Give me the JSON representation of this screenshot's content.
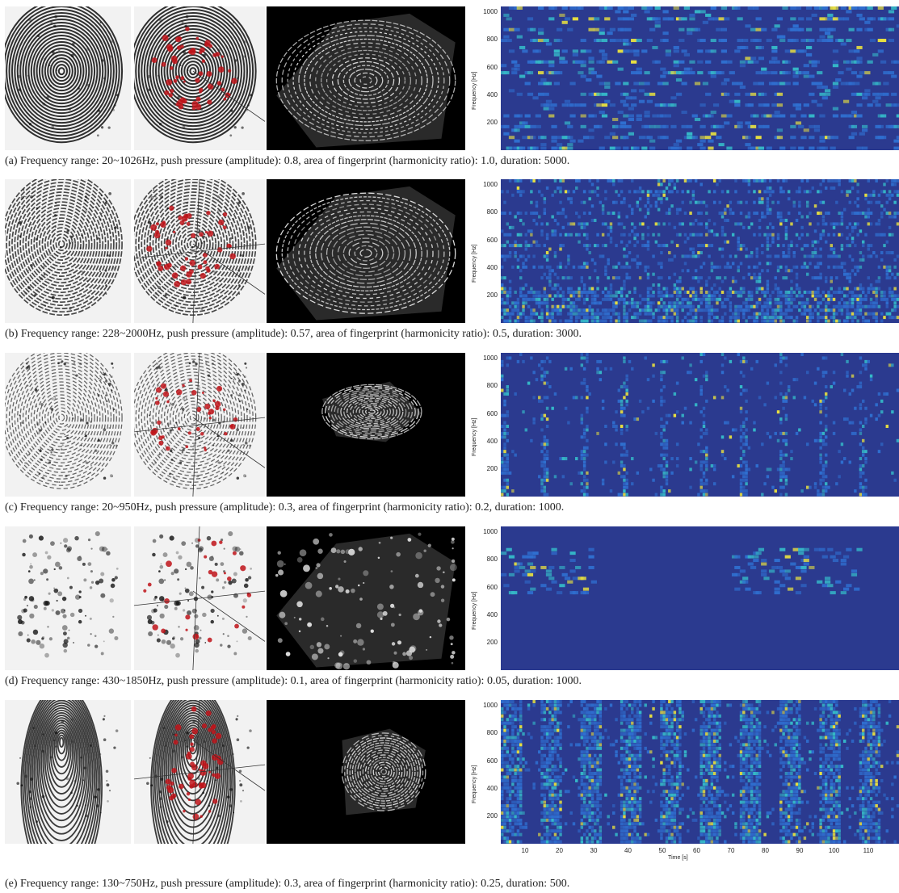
{
  "captions": {
    "a": "(a)  Frequency range: 20~1026Hz, push pressure (amplitude): 0.8, area of fingerprint (harmonicity ratio): 1.0, duration: 5000.",
    "b": "(b)  Frequency range: 228~2000Hz, push pressure (amplitude): 0.57, area of fingerprint (harmonicity ratio): 0.5, duration: 3000.",
    "c": "(c)  Frequency range: 20~950Hz, push pressure (amplitude): 0.3, area of fingerprint (harmonicity ratio): 0.2, duration: 1000.",
    "d": "(d)  Frequency range: 430~1850Hz, push pressure (amplitude): 0.1, area of fingerprint (harmonicity ratio): 0.05, duration: 1000.",
    "e": "(e)  Frequency range: 130~750Hz, push pressure (amplitude): 0.3, area of fingerprint (harmonicity ratio): 0.25, duration: 500."
  },
  "spectrogram": {
    "ylabel": "Frequency [Hz]",
    "xlabel": "Time [s]",
    "yticks": [
      "1000",
      "800",
      "600",
      "400",
      "200"
    ],
    "xticks": [
      "10",
      "20",
      "30",
      "40",
      "50",
      "60",
      "70",
      "80",
      "90",
      "100",
      "110"
    ]
  },
  "colors": {
    "ridge": "#1a1a1a",
    "minutiae": "#c0141a",
    "spec_bg": "#2b3a8f",
    "spec_low": "#2f6fd0",
    "spec_mid": "#35b8c8",
    "spec_high": "#e8e040"
  },
  "chart_data": [
    {
      "type": "heatmap",
      "panel": "a",
      "ylim": [
        0,
        1000
      ],
      "yticks": [
        200,
        400,
        600,
        800,
        1000
      ],
      "ylabel": "Frequency [Hz]"
    },
    {
      "type": "heatmap",
      "panel": "b",
      "ylim": [
        0,
        1000
      ],
      "yticks": [
        200,
        400,
        600,
        800,
        1000
      ],
      "ylabel": "Frequency [Hz]"
    },
    {
      "type": "heatmap",
      "panel": "c",
      "ylim": [
        0,
        1000
      ],
      "yticks": [
        200,
        400,
        600,
        800,
        1000
      ],
      "ylabel": "Frequency [Hz]"
    },
    {
      "type": "heatmap",
      "panel": "d",
      "ylim": [
        0,
        1000
      ],
      "yticks": [
        200,
        400,
        600,
        800,
        1000
      ],
      "ylabel": "Frequency [Hz]"
    },
    {
      "type": "heatmap",
      "panel": "e",
      "ylim": [
        0,
        1000
      ],
      "yticks": [
        200,
        400,
        600,
        800,
        1000
      ],
      "xticks": [
        10,
        20,
        30,
        40,
        50,
        60,
        70,
        80,
        90,
        100,
        110
      ],
      "ylabel": "Frequency [Hz]",
      "xlabel": "Time [s]"
    }
  ]
}
